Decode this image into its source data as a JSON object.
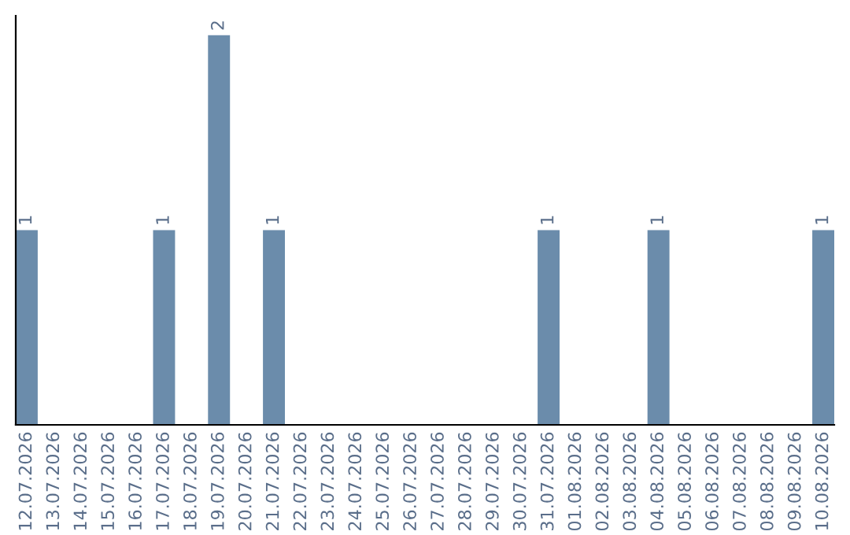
{
  "chart_data": {
    "type": "bar",
    "categories": [
      "12.07.2026",
      "13.07.2026",
      "14.07.2026",
      "15.07.2026",
      "16.07.2026",
      "17.07.2026",
      "18.07.2026",
      "19.07.2026",
      "20.07.2026",
      "21.07.2026",
      "22.07.2026",
      "23.07.2026",
      "24.07.2026",
      "25.07.2026",
      "26.07.2026",
      "27.07.2026",
      "28.07.2026",
      "29.07.2026",
      "30.07.2026",
      "31.07.2026",
      "01.08.2026",
      "02.08.2026",
      "03.08.2026",
      "04.08.2026",
      "05.08.2026",
      "06.08.2026",
      "07.08.2026",
      "08.08.2026",
      "09.08.2026",
      "10.08.2026"
    ],
    "values": [
      1,
      0,
      0,
      0,
      0,
      1,
      0,
      2,
      0,
      1,
      0,
      0,
      0,
      0,
      0,
      0,
      0,
      0,
      0,
      1,
      0,
      0,
      0,
      1,
      0,
      0,
      0,
      0,
      0,
      1
    ],
    "value_labels": [
      "1",
      null,
      null,
      null,
      null,
      "1",
      null,
      "2",
      null,
      "1",
      null,
      null,
      null,
      null,
      null,
      null,
      null,
      null,
      null,
      "1",
      null,
      null,
      null,
      "1",
      null,
      null,
      null,
      null,
      null,
      "1"
    ],
    "color": "#6b8cab",
    "grid": false,
    "tick_labels": "x"
  }
}
